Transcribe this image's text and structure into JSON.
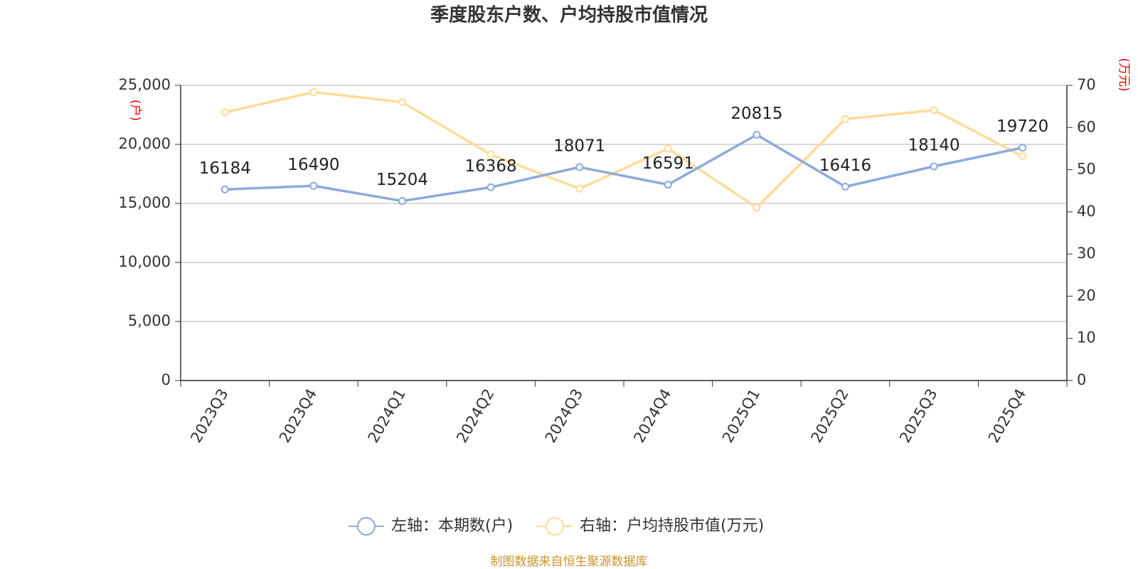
{
  "chart_data": {
    "type": "line",
    "title": "季度股东户数、户均持股市值情况",
    "y_label": "(户)",
    "y2_label": "(万元)",
    "source": "制图数据来自恒生聚源数据库",
    "categories": [
      "2023Q3",
      "2023Q4",
      "2024Q1",
      "2024Q2",
      "2024Q3",
      "2024Q4",
      "2025Q1",
      "2025Q2",
      "2025Q3",
      "2025Q4"
    ],
    "series": [
      {
        "name": "左轴：本期数(户)",
        "color": "#8eaad9",
        "axis": "y",
        "data_labels": true,
        "values": [
          16184,
          16490,
          15204,
          16368,
          18071,
          16591,
          20815,
          16416,
          18140,
          19720
        ]
      },
      {
        "name": "右轴：户均持股市值(万元)",
        "color": "#fddc9a",
        "axis": "y2",
        "data_labels": false,
        "values": [
          63.6,
          68.4,
          66.0,
          53.6,
          45.5,
          55.0,
          41.0,
          62.0,
          64.1,
          53.2
        ]
      }
    ],
    "ylim": [
      0,
      25000
    ],
    "yticks": [
      0,
      {
        "value": 5000,
        "label": "5,000"
      },
      {
        "value": 10000,
        "label": "10,000"
      },
      {
        "value": 15000,
        "label": "15,000"
      },
      {
        "value": 20000,
        "label": "20,000"
      },
      {
        "value": 25000,
        "label": "25,000"
      }
    ],
    "y2lim": [
      0,
      70
    ],
    "y2ticks": [
      0,
      10,
      20,
      30,
      40,
      50,
      60,
      70
    ],
    "grid": true,
    "legend": "bottom"
  }
}
